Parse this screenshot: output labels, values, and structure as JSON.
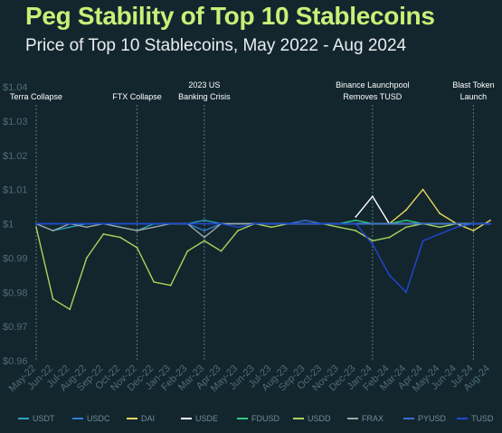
{
  "title": "Peg Stability of Top 10 Stablecoins",
  "subtitle": "Price of Top 10 Stablecoins, May 2022 - Aug 2024",
  "chart_data": {
    "type": "line",
    "title": "Peg Stability of Top 10 Stablecoins",
    "subtitle": "Price of Top 10 Stablecoins, May 2022 - Aug 2024",
    "xlabel": "",
    "ylabel": "",
    "ylim": [
      0.96,
      1.04
    ],
    "y_ticks": [
      "$1.04",
      "$1.03",
      "$1.02",
      "$1.01",
      "$1",
      "$0.99",
      "$0.98",
      "$0.97",
      "$0.96"
    ],
    "y_tick_values": [
      1.04,
      1.03,
      1.02,
      1.01,
      1.0,
      0.99,
      0.98,
      0.97,
      0.96
    ],
    "x_ticks": [
      "May-22",
      "Jun-22",
      "Jul-22",
      "Aug-22",
      "Sep-22",
      "Oct-22",
      "Nov-22",
      "Dec-22",
      "Jan-23",
      "Feb-23",
      "Mar-23",
      "Apr-23",
      "May-23",
      "Jun-23",
      "Jul-23",
      "Aug-23",
      "Sep-23",
      "Oct-23",
      "Nov-23",
      "Dec-23",
      "Jan-24",
      "Feb-24",
      "Mar-24",
      "Apr-24",
      "May-24",
      "Jun-24",
      "Jul-24",
      "Aug-24"
    ],
    "grid": false,
    "legend_position": "bottom",
    "annotations": [
      {
        "label": [
          "Terra Collapse"
        ],
        "x": "May-22"
      },
      {
        "label": [
          "FTX Collapse"
        ],
        "x": "Nov-22"
      },
      {
        "label": [
          "2023 US",
          "Banking Crisis"
        ],
        "x": "Mar-23"
      },
      {
        "label": [
          "Binance Launchpool",
          "Removes TUSD"
        ],
        "x": "Jan-24"
      },
      {
        "label": [
          "Blast Token",
          "Launch"
        ],
        "x": "Jul-24"
      }
    ],
    "series": [
      {
        "name": "USDT",
        "color": "#2e9fc4",
        "values": [
          1.0,
          0.998,
          0.999,
          1.0,
          1.0,
          0.999,
          0.998,
          1.0,
          1.0,
          1.0,
          1.001,
          1.0,
          1.0,
          1.0,
          1.0,
          1.0,
          1.0,
          1.0,
          1.0,
          1.0,
          1.0,
          1.0,
          1.0,
          1.0,
          1.0,
          1.0,
          1.0,
          1.0
        ]
      },
      {
        "name": "USDC",
        "color": "#2f7fd8",
        "values": [
          1.0,
          1.0,
          1.0,
          1.0,
          1.0,
          1.0,
          1.0,
          1.0,
          1.0,
          1.0,
          0.998,
          1.0,
          1.0,
          1.0,
          1.0,
          1.0,
          1.0,
          1.0,
          1.0,
          1.0,
          1.0,
          1.0,
          1.0,
          1.0,
          1.0,
          1.0,
          1.0,
          1.0
        ]
      },
      {
        "name": "DAI",
        "color": "#ead85a",
        "values": [
          null,
          null,
          null,
          null,
          null,
          null,
          null,
          null,
          null,
          null,
          null,
          null,
          null,
          null,
          null,
          null,
          null,
          null,
          null,
          null,
          null,
          1.0,
          1.004,
          1.01,
          1.003,
          1.0,
          0.998,
          1.001
        ]
      },
      {
        "name": "USDE",
        "color": "#ffffff",
        "values": [
          null,
          null,
          null,
          null,
          null,
          null,
          null,
          null,
          null,
          null,
          null,
          null,
          null,
          null,
          null,
          null,
          null,
          null,
          null,
          1.002,
          1.008,
          1.0,
          1.0,
          1.0,
          null,
          null,
          null,
          null
        ]
      },
      {
        "name": "FDUSD",
        "color": "#2ecf82",
        "values": [
          null,
          null,
          null,
          null,
          null,
          null,
          null,
          null,
          null,
          null,
          null,
          null,
          null,
          null,
          null,
          null,
          1.0,
          1.0,
          1.0,
          1.001,
          1.0,
          1.0,
          1.001,
          1.0,
          1.0,
          1.0,
          1.0,
          1.0
        ]
      },
      {
        "name": "USDD",
        "color": "#a8d65a",
        "values": [
          0.999,
          0.978,
          0.975,
          0.99,
          0.997,
          0.996,
          0.993,
          0.983,
          0.982,
          0.992,
          0.995,
          0.992,
          0.998,
          1.0,
          0.999,
          1.0,
          1.0,
          1.0,
          0.999,
          0.998,
          0.995,
          0.996,
          0.999,
          1.0,
          0.999,
          1.0,
          1.0,
          1.0
        ]
      },
      {
        "name": "FRAX",
        "color": "#9aa8a4",
        "values": [
          1.0,
          0.998,
          1.0,
          0.999,
          1.0,
          0.999,
          0.998,
          0.999,
          1.0,
          1.0,
          0.996,
          1.0,
          1.0,
          1.0,
          1.0,
          1.0,
          1.0,
          1.0,
          1.0,
          1.0,
          1.0,
          1.0,
          1.0,
          1.0,
          1.0,
          1.0,
          1.0,
          1.0
        ]
      },
      {
        "name": "PYUSD",
        "color": "#3d6fd1",
        "values": [
          null,
          null,
          null,
          null,
          null,
          null,
          null,
          null,
          null,
          null,
          null,
          null,
          null,
          null,
          null,
          1.0,
          1.001,
          1.0,
          1.0,
          1.0,
          1.0,
          1.0,
          1.0,
          1.0,
          1.0,
          1.0,
          1.0,
          1.0
        ]
      },
      {
        "name": "TUSD",
        "color": "#1f48d6",
        "values": [
          1.0,
          1.0,
          1.0,
          1.0,
          1.0,
          1.0,
          1.0,
          1.0,
          1.0,
          1.0,
          1.0,
          1.0,
          0.999,
          1.0,
          1.0,
          1.0,
          1.0,
          1.0,
          1.0,
          1.0,
          0.994,
          0.985,
          0.98,
          0.995,
          0.997,
          0.999,
          1.0,
          1.0
        ]
      }
    ]
  }
}
